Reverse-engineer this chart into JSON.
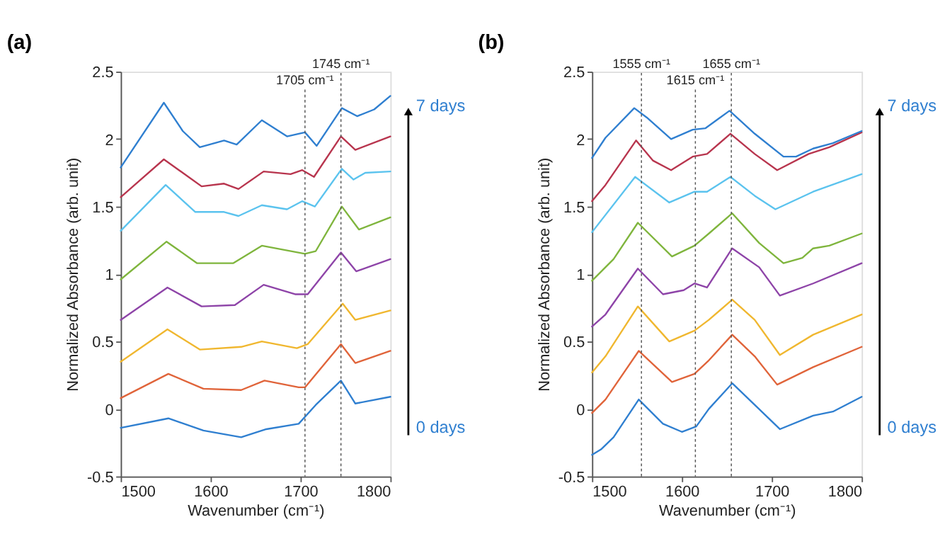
{
  "chart_data": [
    {
      "type": "line",
      "title": "(a)",
      "xlabel": "Wavenumber (cm⁻¹)",
      "ylabel": "Normalized Absorbance (arb. unit)",
      "xlim": [
        1500,
        1800
      ],
      "xticks": [
        1500,
        1600,
        1700,
        1800
      ],
      "ylim": [
        -0.5,
        2.5
      ],
      "yticks": [
        -0.5,
        0,
        0.5,
        1,
        1.5,
        2,
        2.5
      ],
      "grid": false,
      "legend": false,
      "marker": "none",
      "line_style": "solid",
      "annotations": [
        "7 days",
        "0 days"
      ],
      "ref_lines": [
        {
          "axis": "x",
          "value": 1705,
          "label": "1705 cm⁻¹",
          "line_style": "dotted",
          "color": "#555555"
        },
        {
          "axis": "x",
          "value": 1745,
          "label": "1745 cm⁻¹",
          "line_style": "dotted",
          "color": "#555555"
        }
      ],
      "series": [
        {
          "color": "#2f7fd0",
          "x": [
            1500,
            1553,
            1592,
            1634,
            1662,
            1698,
            1717,
            1745,
            1761,
            1800
          ],
          "values": [
            -0.14,
            -0.07,
            -0.16,
            -0.21,
            -0.15,
            -0.11,
            0.03,
            0.21,
            0.04,
            0.09
          ]
        },
        {
          "color": "#e0643a",
          "x": [
            1500,
            1553,
            1592,
            1634,
            1660,
            1698,
            1705,
            1745,
            1761,
            1800
          ],
          "values": [
            0.08,
            0.26,
            0.15,
            0.14,
            0.21,
            0.16,
            0.16,
            0.48,
            0.34,
            0.43
          ]
        },
        {
          "color": "#f0b72f",
          "x": [
            1500,
            1552,
            1588,
            1634,
            1657,
            1696,
            1708,
            1747,
            1761,
            1800
          ],
          "values": [
            0.35,
            0.59,
            0.44,
            0.46,
            0.5,
            0.45,
            0.48,
            0.78,
            0.66,
            0.73
          ]
        },
        {
          "color": "#8e44a8",
          "x": [
            1500,
            1552,
            1590,
            1627,
            1659,
            1694,
            1708,
            1745,
            1762,
            1800
          ],
          "values": [
            0.66,
            0.9,
            0.76,
            0.77,
            0.92,
            0.85,
            0.85,
            1.16,
            1.02,
            1.11
          ]
        },
        {
          "color": "#7fb53d",
          "x": [
            1500,
            1551,
            1585,
            1625,
            1657,
            1705,
            1717,
            1746,
            1765,
            1800
          ],
          "values": [
            0.96,
            1.24,
            1.08,
            1.08,
            1.21,
            1.15,
            1.17,
            1.5,
            1.33,
            1.42
          ]
        },
        {
          "color": "#5bc3ee",
          "x": [
            1500,
            1550,
            1583,
            1615,
            1631,
            1657,
            1685,
            1702,
            1716,
            1746,
            1759,
            1772,
            1800
          ],
          "values": [
            1.32,
            1.66,
            1.46,
            1.46,
            1.43,
            1.51,
            1.48,
            1.54,
            1.5,
            1.78,
            1.7,
            1.75,
            1.76
          ]
        },
        {
          "color": "#b8354e",
          "x": [
            1500,
            1548,
            1590,
            1615,
            1631,
            1659,
            1689,
            1702,
            1715,
            1745,
            1761,
            1800
          ],
          "values": [
            1.57,
            1.85,
            1.65,
            1.67,
            1.63,
            1.76,
            1.74,
            1.77,
            1.72,
            2.02,
            1.92,
            2.02
          ]
        },
        {
          "color": "#2f7fd0",
          "x": [
            1500,
            1548,
            1569,
            1588,
            1615,
            1629,
            1657,
            1685,
            1705,
            1718,
            1746,
            1763,
            1782,
            1800
          ],
          "values": [
            1.79,
            2.27,
            2.06,
            1.94,
            1.99,
            1.96,
            2.14,
            2.02,
            2.05,
            1.95,
            2.23,
            2.17,
            2.22,
            2.32
          ]
        }
      ]
    },
    {
      "type": "line",
      "title": "(b)",
      "xlabel": "Wavenumber (cm⁻¹)",
      "ylabel": "Normalized Absorbance (arb. unit)",
      "xlim": [
        1500,
        1800
      ],
      "xticks": [
        1500,
        1600,
        1700,
        1800
      ],
      "ylim": [
        -0.5,
        2.5
      ],
      "yticks": [
        -0.5,
        0,
        0.5,
        1,
        1.5,
        2,
        2.5
      ],
      "grid": false,
      "legend": false,
      "marker": "none",
      "line_style": "solid",
      "annotations": [
        "7 days",
        "0 days"
      ],
      "ref_lines": [
        {
          "axis": "x",
          "value": 1555,
          "label": "1555 cm⁻¹",
          "line_style": "dotted",
          "color": "#555555"
        },
        {
          "axis": "x",
          "value": 1615,
          "label": "1615 cm⁻¹",
          "line_style": "dotted",
          "color": "#555555"
        },
        {
          "axis": "x",
          "value": 1655,
          "label": "1655 cm⁻¹",
          "line_style": "dotted",
          "color": "#555555"
        }
      ],
      "series": [
        {
          "color": "#2f7fd0",
          "x": [
            1500,
            1510,
            1524,
            1552,
            1579,
            1600,
            1616,
            1630,
            1656,
            1681,
            1709,
            1746,
            1768,
            1800
          ],
          "values": [
            -0.34,
            -0.3,
            -0.21,
            0.07,
            -0.11,
            -0.17,
            -0.13,
            0.0,
            0.19,
            0.03,
            -0.15,
            -0.05,
            -0.02,
            0.09
          ]
        },
        {
          "color": "#e0643a",
          "x": [
            1500,
            1515,
            1552,
            1589,
            1614,
            1630,
            1656,
            1681,
            1706,
            1746,
            1800
          ],
          "values": [
            -0.03,
            0.07,
            0.43,
            0.2,
            0.26,
            0.36,
            0.55,
            0.39,
            0.18,
            0.31,
            0.46
          ]
        },
        {
          "color": "#f0b72f",
          "x": [
            1500,
            1515,
            1551,
            1586,
            1614,
            1630,
            1656,
            1681,
            1709,
            1746,
            1800
          ],
          "values": [
            0.27,
            0.39,
            0.76,
            0.5,
            0.58,
            0.66,
            0.81,
            0.66,
            0.4,
            0.55,
            0.7
          ]
        },
        {
          "color": "#8e44a8",
          "x": [
            1500,
            1515,
            1551,
            1579,
            1602,
            1614,
            1628,
            1656,
            1686,
            1709,
            1746,
            1800
          ],
          "values": [
            0.61,
            0.7,
            1.04,
            0.85,
            0.88,
            0.93,
            0.9,
            1.19,
            1.05,
            0.84,
            0.93,
            1.08
          ]
        },
        {
          "color": "#7fb53d",
          "x": [
            1500,
            1524,
            1551,
            1589,
            1614,
            1630,
            1656,
            1686,
            1713,
            1734,
            1746,
            1764,
            1800
          ],
          "values": [
            0.95,
            1.11,
            1.38,
            1.13,
            1.21,
            1.3,
            1.45,
            1.23,
            1.08,
            1.12,
            1.19,
            1.21,
            1.3
          ]
        },
        {
          "color": "#5bc3ee",
          "x": [
            1500,
            1548,
            1586,
            1614,
            1628,
            1654,
            1681,
            1704,
            1746,
            1800
          ],
          "values": [
            1.31,
            1.72,
            1.53,
            1.61,
            1.61,
            1.72,
            1.58,
            1.48,
            1.61,
            1.74
          ]
        },
        {
          "color": "#b8354e",
          "x": [
            1500,
            1515,
            1549,
            1568,
            1588,
            1612,
            1628,
            1654,
            1681,
            1706,
            1741,
            1764,
            1800
          ],
          "values": [
            1.54,
            1.66,
            1.99,
            1.84,
            1.77,
            1.87,
            1.89,
            2.04,
            1.89,
            1.77,
            1.89,
            1.94,
            2.05
          ]
        },
        {
          "color": "#2f7fd0",
          "x": [
            1500,
            1515,
            1547,
            1561,
            1588,
            1612,
            1626,
            1653,
            1681,
            1713,
            1727,
            1746,
            1768,
            1800
          ],
          "values": [
            1.86,
            2.01,
            2.23,
            2.16,
            2.0,
            2.07,
            2.08,
            2.21,
            2.04,
            1.87,
            1.87,
            1.93,
            1.97,
            2.06
          ]
        }
      ]
    }
  ]
}
